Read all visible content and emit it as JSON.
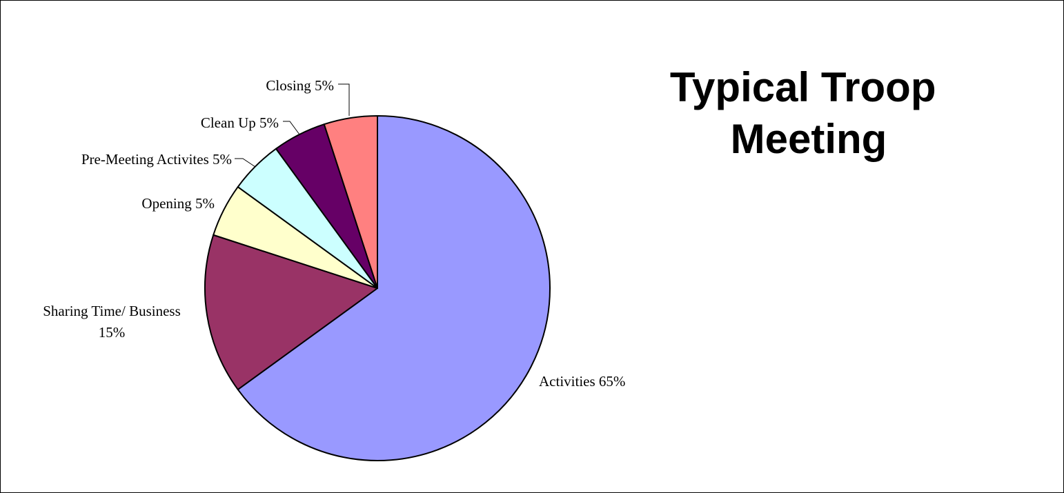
{
  "chart_data": {
    "type": "pie",
    "title": [
      "Typical Troop",
      "Meeting"
    ],
    "start_angle_deg": 0,
    "direction": "clockwise",
    "slices": [
      {
        "label": "Activities",
        "pct_text": "65%",
        "value": 65,
        "color": "#9999FF"
      },
      {
        "label": "Sharing Time/ Business",
        "pct_text": "15%",
        "value": 15,
        "color": "#993366"
      },
      {
        "label": "Opening",
        "pct_text": "5%",
        "value": 5,
        "color": "#FFFFCC"
      },
      {
        "label": "Pre-Meeting Activites",
        "pct_text": "5%",
        "value": 5,
        "color": "#CCFFFF"
      },
      {
        "label": "Clean Up",
        "pct_text": "5%",
        "value": 5,
        "color": "#660066"
      },
      {
        "label": "Closing",
        "pct_text": "5%",
        "value": 5,
        "color": "#FF8080"
      }
    ]
  }
}
